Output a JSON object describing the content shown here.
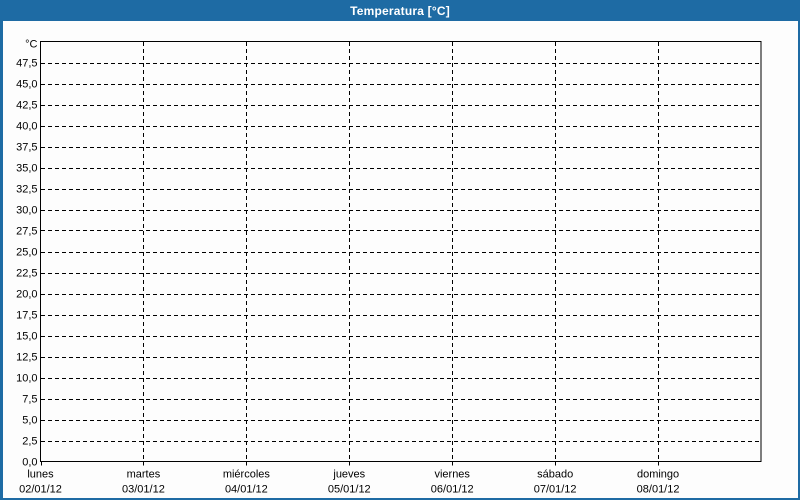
{
  "window": {
    "title": "Temperatura [°C]",
    "titlebar_color": "#1e6ba4",
    "border_color": "#1e6ba4",
    "background_color": "#fdfdfd"
  },
  "chart_data": {
    "type": "line",
    "title": "Temperatura [°C]",
    "y_unit_label": "°C",
    "ylim": [
      0,
      50
    ],
    "y_tick_step": 2.5,
    "y_tick_labels": [
      "0,0",
      "2,5",
      "5,0",
      "7,5",
      "10,0",
      "12,5",
      "15,0",
      "17,5",
      "20,0",
      "22,5",
      "25,0",
      "27,5",
      "30,0",
      "32,5",
      "35,0",
      "37,5",
      "40,0",
      "42,5",
      "45,0",
      "47,5"
    ],
    "x_categories": [
      {
        "day": "lunes",
        "date": "02/01/12"
      },
      {
        "day": "martes",
        "date": "03/01/12"
      },
      {
        "day": "miércoles",
        "date": "04/01/12"
      },
      {
        "day": "jueves",
        "date": "05/01/12"
      },
      {
        "day": "viernes",
        "date": "06/01/12"
      },
      {
        "day": "sábado",
        "date": "07/01/12"
      },
      {
        "day": "domingo",
        "date": "08/01/12"
      }
    ],
    "x_span_days": 7,
    "series": [],
    "grid": "dashed",
    "legend": "none"
  }
}
